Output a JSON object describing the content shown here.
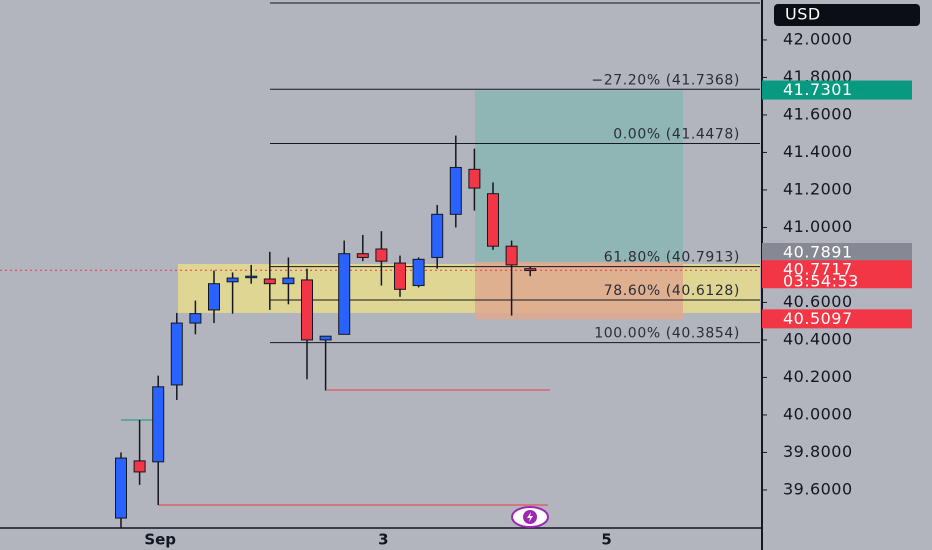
{
  "chart_data": {
    "type": "candlestick",
    "currency": "USD",
    "categories": [
      null,
      null,
      "Sep",
      null,
      null,
      null,
      null,
      null,
      null,
      null,
      null,
      null,
      null,
      null,
      "3",
      null,
      null,
      null,
      null,
      null,
      null,
      null,
      null,
      null,
      null,
      null,
      "5"
    ],
    "open": [
      39.45,
      39.755,
      39.75,
      40.16,
      40.49,
      40.56,
      40.71,
      40.735,
      40.725,
      40.7,
      40.72,
      40.4,
      40.43,
      40.86,
      40.885,
      40.81,
      40.69,
      40.84,
      41.07,
      41.31,
      41.18,
      40.9,
      40.78,
      null,
      null,
      null,
      null
    ],
    "high": [
      39.8,
      39.973,
      40.21,
      40.544,
      40.61,
      40.77,
      40.76,
      40.8,
      40.87,
      40.84,
      40.78,
      40.42,
      40.93,
      40.96,
      40.98,
      40.85,
      40.84,
      41.12,
      41.49,
      41.42,
      41.24,
      40.93,
      40.79,
      null,
      null,
      null,
      null
    ],
    "low": [
      39.4,
      39.627,
      39.52,
      40.08,
      40.43,
      40.49,
      40.54,
      40.7,
      40.56,
      40.59,
      40.19,
      40.13,
      40.43,
      40.82,
      40.69,
      40.63,
      40.68,
      40.78,
      41.0,
      41.09,
      40.88,
      40.53,
      40.74,
      null,
      null,
      null,
      null
    ],
    "close": [
      39.77,
      39.696,
      40.15,
      40.49,
      40.54,
      40.7,
      40.73,
      40.74,
      40.7,
      40.73,
      40.4,
      40.42,
      40.86,
      40.84,
      40.82,
      40.67,
      40.83,
      41.07,
      41.32,
      41.21,
      40.9,
      40.8,
      40.77,
      null,
      null,
      null,
      null
    ],
    "up_color": "#2962ff",
    "down_color": "#f23645",
    "ylim": [
      39.397,
      42.213
    ],
    "yticks": [
      {
        "value": 39.6,
        "label": "39.6000"
      },
      {
        "value": 39.8,
        "label": "39.8000"
      },
      {
        "value": 40.0,
        "label": "40.0000"
      },
      {
        "value": 40.2,
        "label": "40.2000"
      },
      {
        "value": 40.4,
        "label": "40.4000"
      },
      {
        "value": 40.6,
        "label": "40.6000"
      },
      {
        "value": 40.8,
        "label": "40.8000"
      },
      {
        "value": 41.0,
        "label": "41.0000"
      },
      {
        "value": 41.2,
        "label": "41.2000"
      },
      {
        "value": 41.4,
        "label": "41.4000"
      },
      {
        "value": 41.6,
        "label": "41.6000"
      },
      {
        "value": 41.8,
        "label": "41.8000"
      },
      {
        "value": 42.0,
        "label": "42.0000"
      }
    ],
    "zones": [
      {
        "from": 40.544,
        "to": 40.805,
        "color": "#e6dc8c"
      },
      {
        "from": 40.816,
        "to": 41.7301,
        "color": "#88b6b4"
      },
      {
        "from": 40.5097,
        "to": 40.816,
        "color": "#dfa98f"
      }
    ],
    "fib_levels": [
      {
        "value": 41.7368,
        "label": "−27.20% (41.7368)"
      },
      {
        "value": 41.4478,
        "label": "0.00% (41.4478)"
      },
      {
        "value": 40.7913,
        "label": "61.80% (40.7913)"
      },
      {
        "value": 40.6128,
        "label": "78.60% (40.6128)"
      },
      {
        "value": 40.3854,
        "label": "100.00% (40.3854)"
      }
    ],
    "level_lines": [
      {
        "value": 40.133,
        "color": "#f23645"
      },
      {
        "value": 39.52,
        "color": "#f23645"
      },
      {
        "value": 39.973,
        "color": "#089981"
      }
    ],
    "price_tags": [
      {
        "value": 41.7301,
        "label": "41.7301",
        "color": "#089981"
      },
      {
        "value": 40.7891,
        "label": "40.7891",
        "color": "#868993"
      },
      {
        "value": 40.7717,
        "label": "40.7717",
        "color": "#f23645"
      },
      {
        "value": 40.5097,
        "label": "40.5097",
        "color": "#f23645"
      }
    ],
    "countdown": "03:54:53"
  }
}
